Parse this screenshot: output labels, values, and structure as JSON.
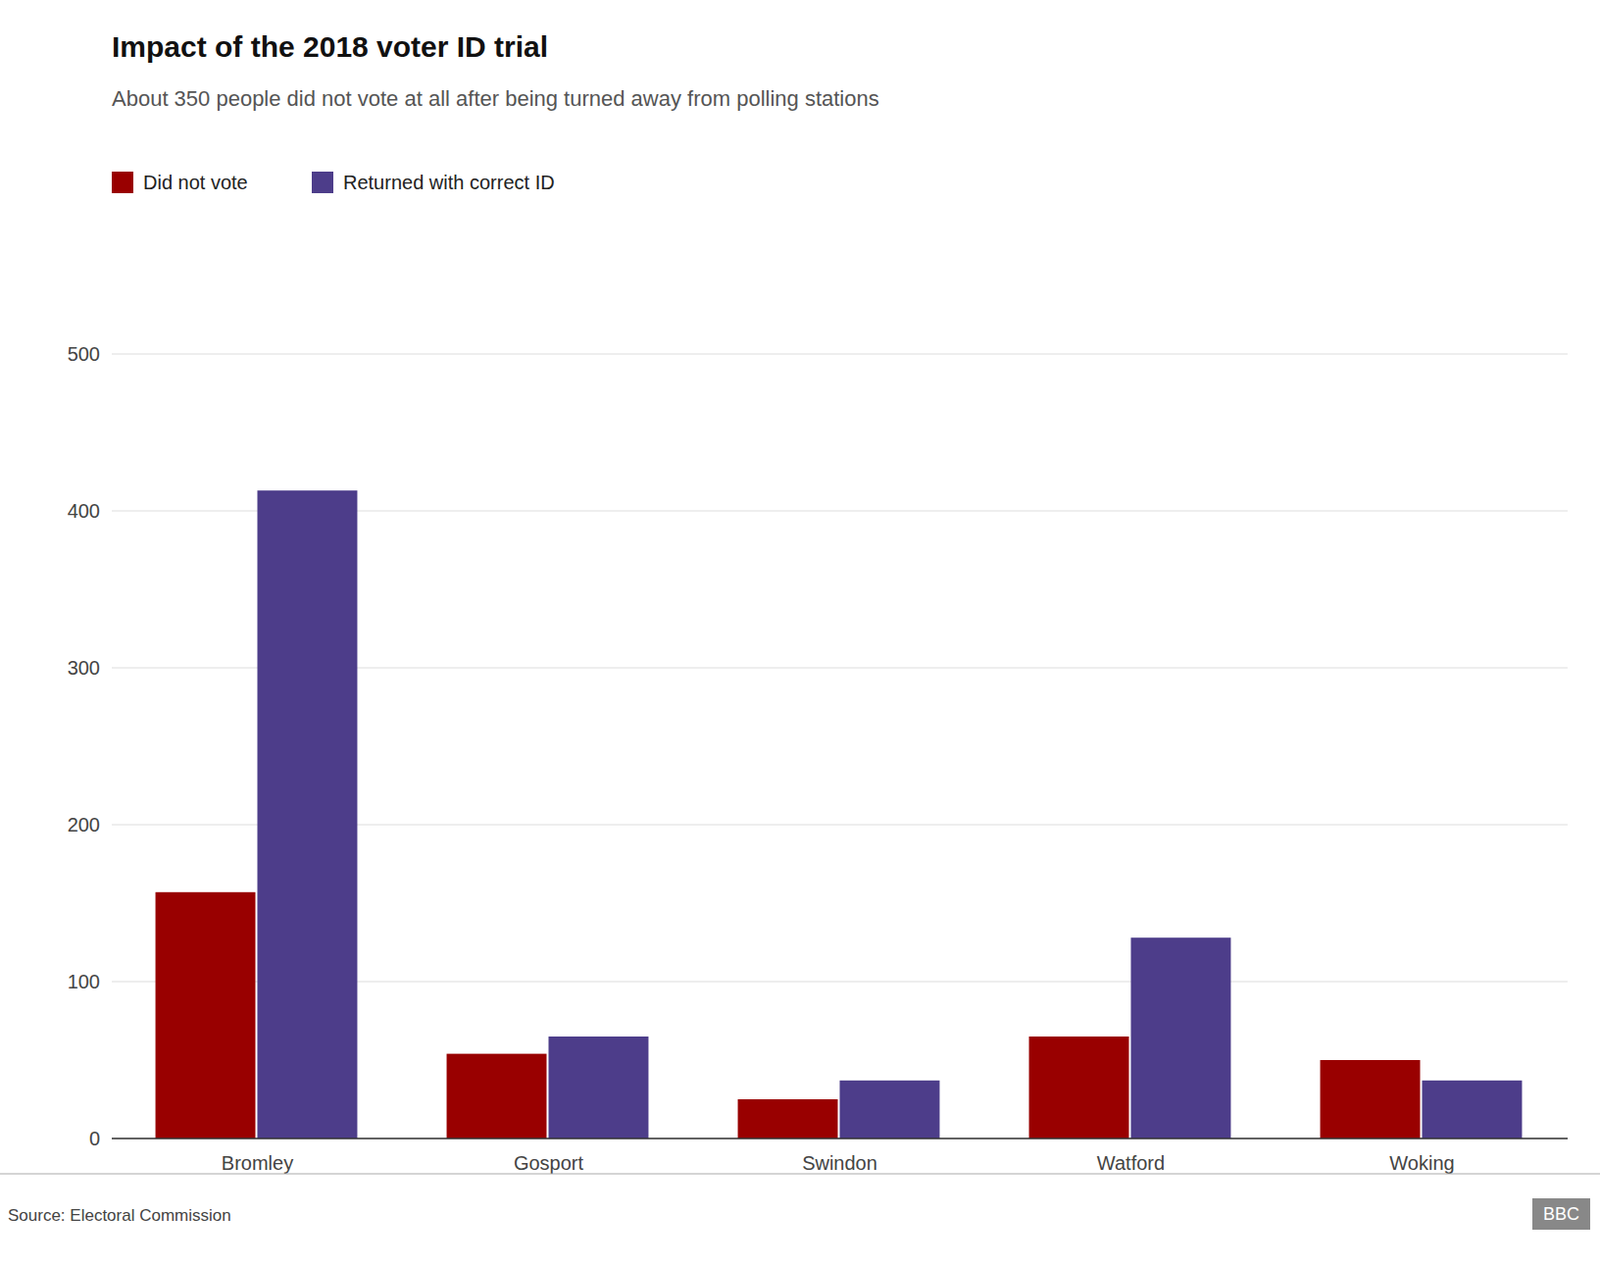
{
  "chart_data": {
    "type": "bar",
    "title": "Impact of the 2018 voter ID trial",
    "subtitle": "About 350 people did not vote at all after being turned away from polling stations",
    "categories": [
      "Bromley",
      "Gosport",
      "Swindon",
      "Watford",
      "Woking"
    ],
    "series": [
      {
        "name": "Did not vote",
        "color": "#990000",
        "values": [
          157,
          54,
          25,
          65,
          50
        ]
      },
      {
        "name": "Returned with correct ID",
        "color": "#4d3d8a",
        "values": [
          413,
          65,
          37,
          128,
          37
        ]
      }
    ],
    "ylim": [
      0,
      500
    ],
    "yticks": [
      0,
      100,
      200,
      300,
      400,
      500
    ],
    "grid": true,
    "legend": "upper left",
    "annotations": [
      "Source: Electoral Commission",
      "BBC"
    ]
  }
}
